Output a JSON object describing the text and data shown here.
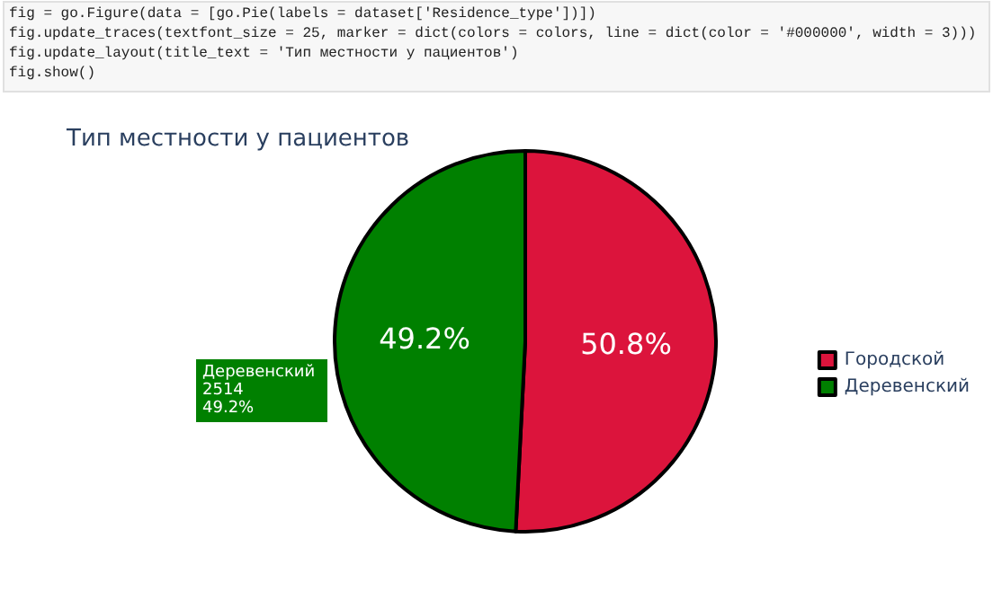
{
  "chart_data": {
    "type": "pie",
    "title": "Тип местности у пациентов",
    "categories": [
      "Городской",
      "Деревенский"
    ],
    "values": [
      50.8,
      49.2
    ],
    "colors": [
      "#dc143c",
      "#008000"
    ],
    "value_labels": [
      "50.8%",
      "49.2%"
    ],
    "legend": "right",
    "annotations": [
      "fig = go.Figure(data = [go.Pie(labels = dataset['Residence_type'])])",
      "fig.update_traces(textfont_size = 25, marker = dict(colors = colors, line = dict(color = '#000000', width = 3)))",
      "fig.update_layout(title_text = 'Тип местности у пациентов')",
      "fig.show()",
      "Деревенский\n2514\n49.2%"
    ]
  }
}
